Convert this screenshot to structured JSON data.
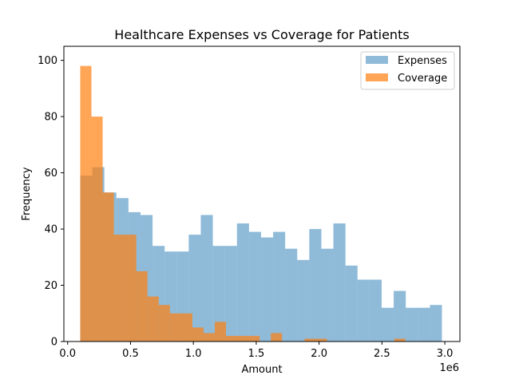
{
  "chart_data": {
    "type": "histogram",
    "title": "Healthcare Expenses vs Coverage for Patients",
    "xlabel": "Amount",
    "ylabel": "Frequency",
    "x_offset_label": "1e6",
    "xlim": [
      -0.03,
      3.12
    ],
    "ylim": [
      0,
      105
    ],
    "xticks": [
      0.0,
      0.5,
      1.0,
      1.5,
      2.0,
      2.5,
      3.0
    ],
    "xtick_labels": [
      "0.0",
      "0.5",
      "1.0",
      "1.5",
      "2.0",
      "2.5",
      "3.0"
    ],
    "yticks": [
      0,
      20,
      40,
      60,
      80,
      100
    ],
    "ytick_labels": [
      "0",
      "20",
      "40",
      "60",
      "80",
      "100"
    ],
    "legend_position": "top-right",
    "series": [
      {
        "name": "Expenses",
        "color": "#1f77b4",
        "opacity": 0.5,
        "bin_start": 0.1,
        "bin_width": 0.0959,
        "counts": [
          59,
          62,
          53,
          51,
          46,
          45,
          34,
          32,
          32,
          38,
          45,
          34,
          34,
          42,
          39,
          37,
          39,
          33,
          29,
          40,
          33,
          42,
          27,
          22,
          22,
          12,
          18,
          12,
          12,
          13
        ]
      },
      {
        "name": "Coverage",
        "color": "#ff7f0e",
        "opacity": 0.7,
        "bin_start": 0.1,
        "bin_width": 0.0892,
        "counts": [
          98,
          80,
          53,
          38,
          38,
          25,
          16,
          13,
          10,
          10,
          5,
          3,
          7,
          2,
          2,
          2,
          0,
          3,
          0,
          0,
          1,
          1,
          0,
          0,
          0,
          0,
          0,
          0,
          1,
          0
        ]
      }
    ]
  }
}
